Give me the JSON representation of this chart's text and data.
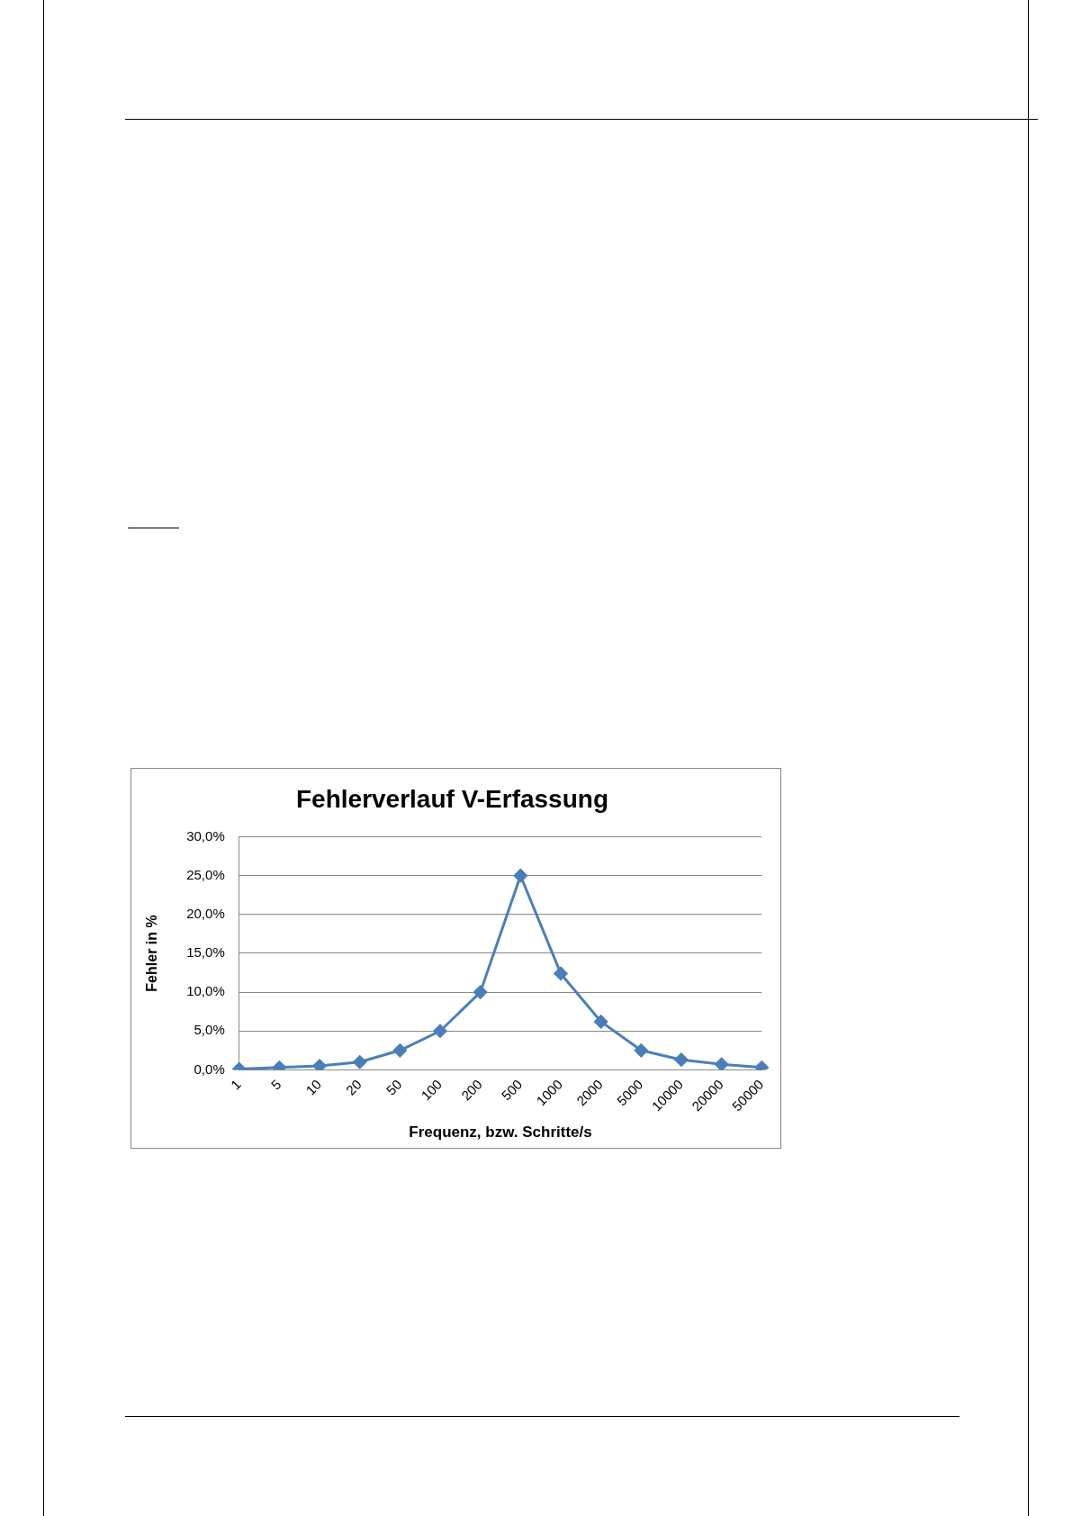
{
  "chart_data": {
    "type": "line",
    "title": "Fehlerverlauf V-Erfassung",
    "xlabel": "Frequenz, bzw. Schritte/s",
    "ylabel": "Fehler in %",
    "categories": [
      "1",
      "5",
      "10",
      "20",
      "50",
      "100",
      "200",
      "500",
      "1000",
      "2000",
      "5000",
      "10000",
      "20000",
      "50000"
    ],
    "series": [
      {
        "color": "#4a7ebb",
        "values": [
          0.1,
          0.3,
          0.5,
          1,
          2.5,
          5,
          10,
          25,
          12.4,
          6.2,
          2.5,
          1.3,
          0.7,
          0.3
        ]
      }
    ],
    "ylim": [
      0,
      30
    ],
    "yticks": [
      {
        "value": 0,
        "label": "0,0%"
      },
      {
        "value": 5,
        "label": "5,0%"
      },
      {
        "value": 10,
        "label": "10,0%"
      },
      {
        "value": 15,
        "label": "15,0%"
      },
      {
        "value": 20,
        "label": "20,0%"
      },
      {
        "value": 25,
        "label": "25,0%"
      },
      {
        "value": 30,
        "label": "30,0%"
      }
    ],
    "grid": "y",
    "legend": false,
    "marker": "diamond",
    "line_style": "solid"
  }
}
